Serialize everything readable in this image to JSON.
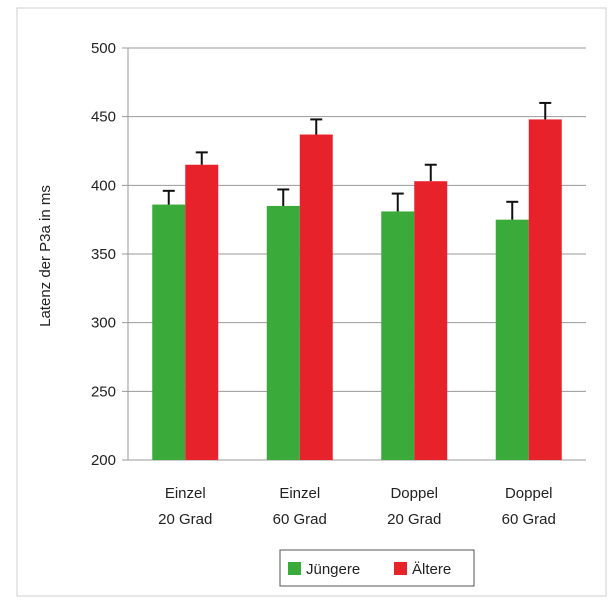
{
  "chart_data": {
    "type": "bar",
    "title": "",
    "xlabel": "",
    "ylabel": "Latenz der P3a in ms",
    "ylim": [
      200,
      500
    ],
    "yticks": [
      200,
      250,
      300,
      350,
      400,
      450,
      500
    ],
    "grid": true,
    "legend_position": "bottom",
    "categories": [
      [
        "Einzel",
        "20 Grad"
      ],
      [
        "Einzel",
        "60 Grad"
      ],
      [
        "Doppel",
        "20 Grad"
      ],
      [
        "Doppel",
        "60 Grad"
      ]
    ],
    "series": [
      {
        "name": "Jüngere",
        "color": "#3aaa3a",
        "values": [
          386,
          385,
          381,
          375
        ],
        "errors": [
          10,
          12,
          13,
          13
        ]
      },
      {
        "name": "Ältere",
        "color": "#e8222a",
        "values": [
          415,
          437,
          403,
          448
        ],
        "errors": [
          9,
          11,
          12,
          12
        ]
      }
    ]
  }
}
